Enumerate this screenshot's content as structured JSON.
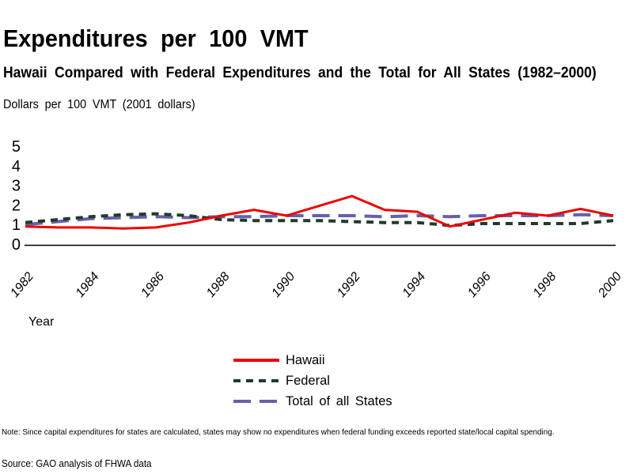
{
  "header": {
    "title": "Expenditures per 100 VMT",
    "subtitle": "Hawaii Compared with Federal Expenditures and the Total for All States (1982–2000)"
  },
  "chart": {
    "y_axis_title": "Dollars per 100 VMT (2001 dollars)",
    "x_axis_title": "Year"
  },
  "chart_data": {
    "type": "line",
    "title": "Expenditures per 100 VMT",
    "subtitle": "Hawaii Compared with Federal Expenditures and the Total for All States (1982–2000)",
    "xlabel": "Year",
    "ylabel": "Dollars per 100 VMT (2001 dollars)",
    "x": [
      1982,
      1983,
      1984,
      1985,
      1986,
      1987,
      1988,
      1989,
      1990,
      1991,
      1992,
      1993,
      1994,
      1995,
      1996,
      1997,
      1998,
      1999,
      2000
    ],
    "x_tick_labels": [
      "1982",
      "1984",
      "1986",
      "1988",
      "1990",
      "1992",
      "1994",
      "1996",
      "1998",
      "2000"
    ],
    "y_ticks": [
      0,
      1,
      2,
      3,
      4,
      5
    ],
    "ylim": [
      0,
      5
    ],
    "grid": false,
    "legend_position": "bottom-center",
    "series": [
      {
        "name": "Hawaii",
        "color": "#ee0000",
        "style": "solid",
        "line_width": 3,
        "values": [
          0.9,
          0.85,
          0.85,
          0.8,
          0.85,
          1.1,
          1.45,
          1.75,
          1.45,
          1.95,
          2.45,
          1.75,
          1.65,
          0.9,
          1.25,
          1.6,
          1.45,
          1.8,
          1.45
        ]
      },
      {
        "name": "Federal",
        "color": "#1f3b2c",
        "style": "short-dash",
        "dash": [
          9,
          7
        ],
        "line_width": 4,
        "values": [
          1.1,
          1.25,
          1.4,
          1.5,
          1.55,
          1.45,
          1.25,
          1.2,
          1.2,
          1.2,
          1.15,
          1.1,
          1.1,
          0.95,
          1.05,
          1.05,
          1.05,
          1.05,
          1.2
        ]
      },
      {
        "name": "Total of all States",
        "color": "#6661a9",
        "style": "long-dash",
        "dash": [
          22,
          11
        ],
        "line_width": 4,
        "values": [
          1.0,
          1.15,
          1.3,
          1.35,
          1.4,
          1.35,
          1.4,
          1.4,
          1.45,
          1.45,
          1.45,
          1.4,
          1.45,
          1.4,
          1.45,
          1.45,
          1.45,
          1.5,
          1.45
        ]
      }
    ]
  },
  "footer": {
    "note": "Note: Since capital expenditures for states are calculated, states may show no expenditures when federal funding exceeds reported state/local capital spending.",
    "source": "Source: GAO analysis of FHWA data"
  }
}
